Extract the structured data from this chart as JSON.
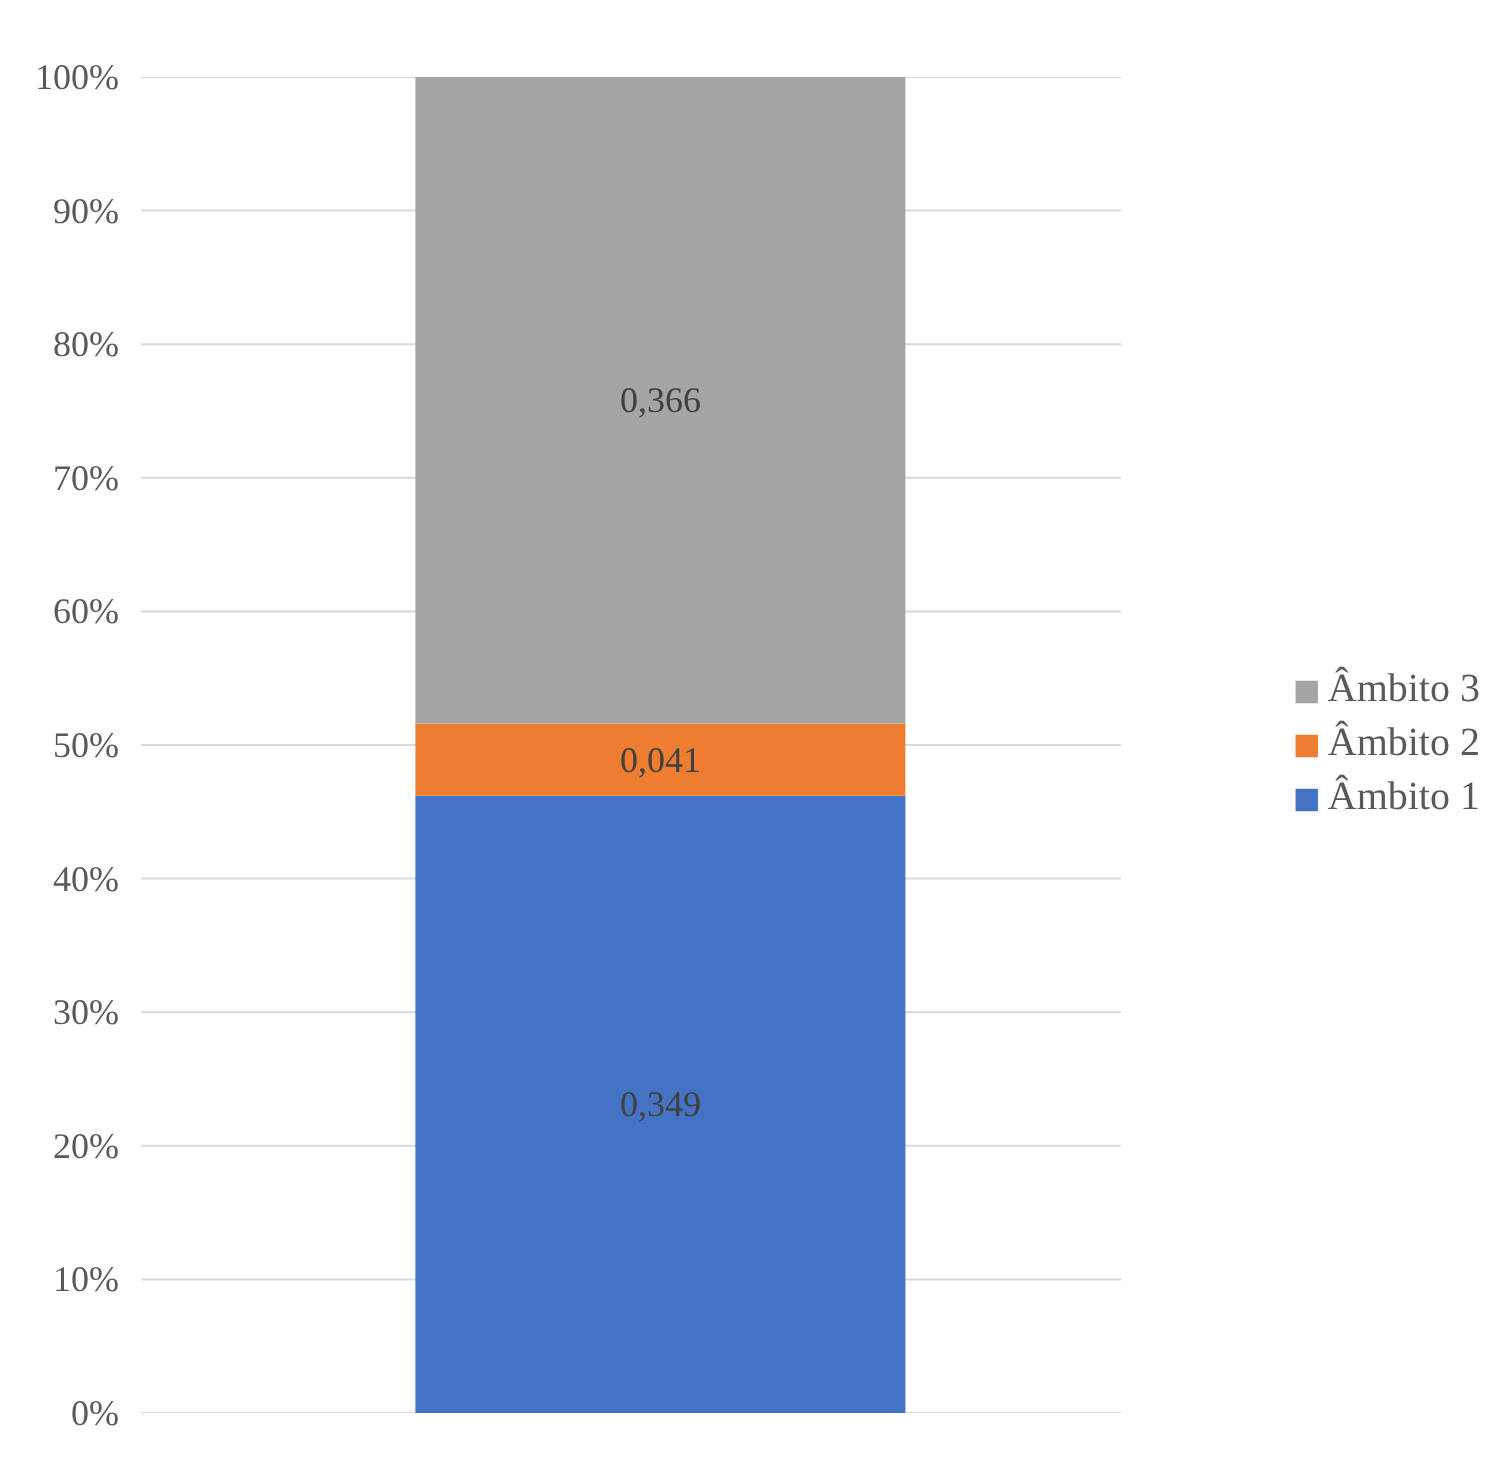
{
  "chart_data": {
    "type": "bar",
    "stacked": true,
    "categories": [
      null
    ],
    "series": [
      {
        "name": "Âmbito 1",
        "color": "#4472c4",
        "values": [
          46.2
        ]
      },
      {
        "name": "Âmbito 2",
        "color": "#ed7d31",
        "values": [
          5.4
        ]
      },
      {
        "name": "Âmbito 3",
        "color": "#a5a5a5",
        "values": [
          48.4
        ]
      }
    ],
    "annotations": [
      "0,349",
      "0,041",
      "0,366"
    ],
    "ylim": [
      0,
      100
    ],
    "yticks": [
      {
        "value": 0,
        "label": "0%"
      },
      {
        "value": 10,
        "label": "10%"
      },
      {
        "value": 20,
        "label": "20%"
      },
      {
        "value": 30,
        "label": "30%"
      },
      {
        "value": 40,
        "label": "40%"
      },
      {
        "value": 50,
        "label": "50%"
      },
      {
        "value": 60,
        "label": "60%"
      },
      {
        "value": 70,
        "label": "70%"
      },
      {
        "value": 80,
        "label": "80%"
      },
      {
        "value": 90,
        "label": "90%"
      },
      {
        "value": 100,
        "label": "100%"
      }
    ],
    "grid": "y",
    "legend": "right",
    "tick_labels": "y"
  }
}
